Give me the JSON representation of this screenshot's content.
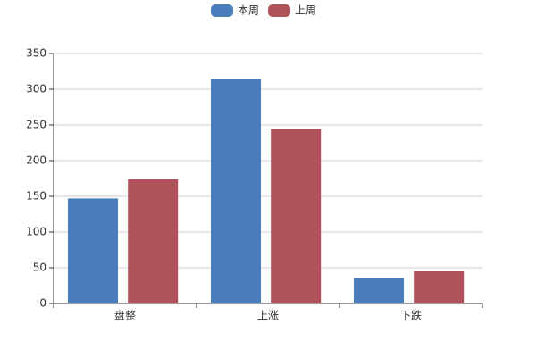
{
  "chart_data": {
    "type": "bar",
    "categories": [
      "盘整",
      "上涨",
      "下跌"
    ],
    "series": [
      {
        "name": "本周",
        "color": "#4a7ebb",
        "values": [
          147,
          315,
          35
        ]
      },
      {
        "name": "上周",
        "color": "#b0525a",
        "values": [
          174,
          245,
          45
        ]
      }
    ],
    "ylim": [
      0,
      350
    ],
    "yticks": [
      0,
      50,
      100,
      150,
      200,
      250,
      300,
      350
    ],
    "grid": true,
    "legend": "top"
  }
}
